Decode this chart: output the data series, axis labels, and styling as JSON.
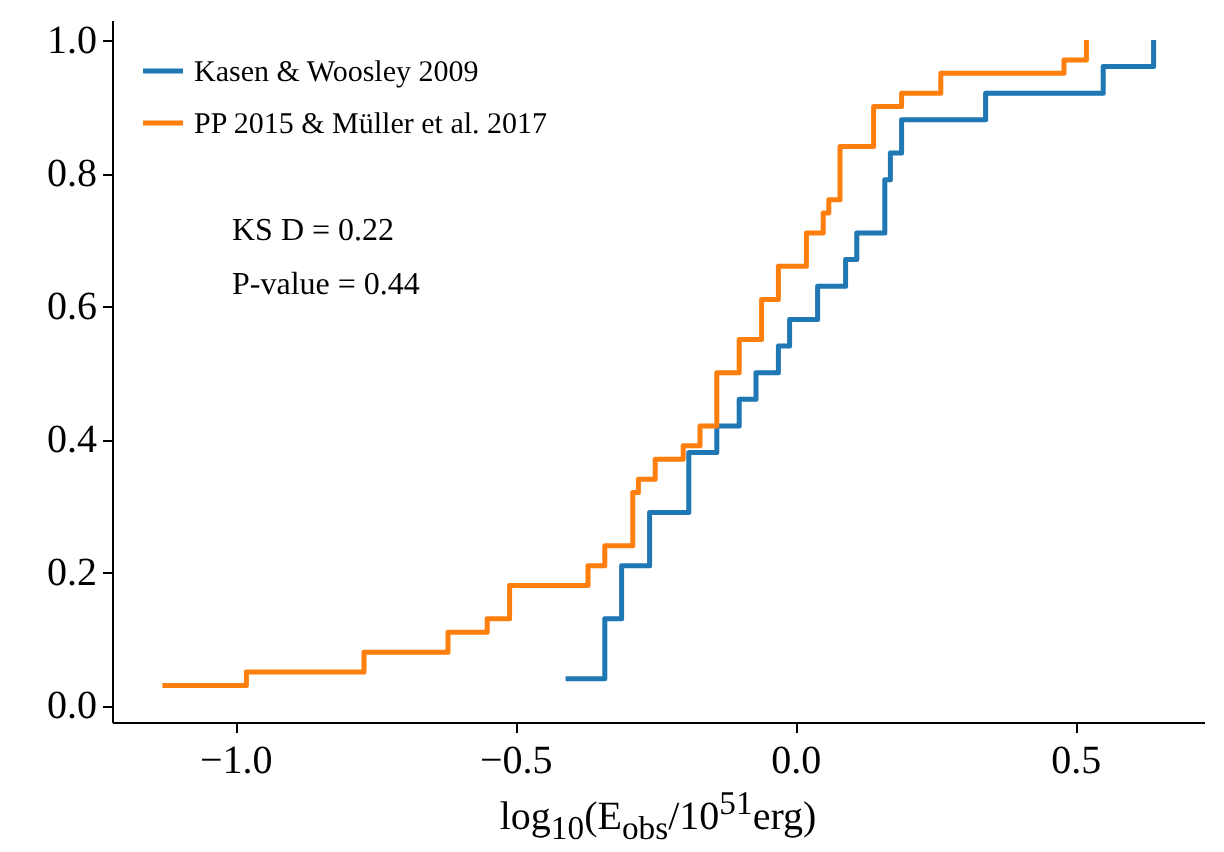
{
  "chart_data": {
    "type": "step",
    "xlabel": "log$_{10}$(E$_{obs}$/10$^{51}$erg)",
    "annotations": [
      "KS D = 0.22",
      "P-value = 0.44"
    ],
    "series": [
      {
        "name": "Kasen & Woosley 2009",
        "color": "#1f77b4",
        "x": [
          -0.41,
          -0.34,
          -0.31,
          -0.26,
          -0.19,
          -0.14,
          -0.1,
          -0.07,
          -0.03,
          -0.01,
          0.04,
          0.09,
          0.11,
          0.16,
          0.16,
          0.17,
          0.19,
          0.34,
          0.55,
          0.64
        ],
        "values": [
          0.04,
          0.13,
          0.21,
          0.29,
          0.38,
          0.42,
          0.46,
          0.5,
          0.54,
          0.58,
          0.63,
          0.67,
          0.71,
          0.75,
          0.79,
          0.83,
          0.88,
          0.92,
          0.96,
          1.0
        ]
      },
      {
        "name": "PP 2015 & Müller et al. 2017",
        "color": "#ff7f0e",
        "x": [
          -1.13,
          -0.98,
          -0.77,
          -0.62,
          -0.55,
          -0.51,
          -0.37,
          -0.34,
          -0.29,
          -0.28,
          -0.25,
          -0.2,
          -0.17,
          -0.14,
          -0.1,
          -0.06,
          -0.03,
          0.02,
          0.05,
          0.06,
          0.08,
          0.14,
          0.19,
          0.26,
          0.48,
          0.52
        ],
        "values": [
          0.03,
          0.05,
          0.08,
          0.11,
          0.13,
          0.18,
          0.21,
          0.24,
          0.32,
          0.34,
          0.37,
          0.39,
          0.42,
          0.5,
          0.55,
          0.61,
          0.66,
          0.71,
          0.74,
          0.76,
          0.84,
          0.9,
          0.92,
          0.95,
          0.97,
          1.0
        ]
      }
    ],
    "xlim": [
      -1.22,
      0.73
    ],
    "ylim": [
      -0.025,
      1.03
    ],
    "xticks": [
      {
        "value": -1,
        "label": "−1.0"
      },
      {
        "value": -0.5,
        "label": "−0.5"
      },
      {
        "value": 0,
        "label": "0.0"
      },
      {
        "value": 0.5,
        "label": "0.5"
      }
    ],
    "yticks": [
      {
        "value": 0,
        "label": "0.0"
      },
      {
        "value": 0.2,
        "label": "0.2"
      },
      {
        "value": 0.4,
        "label": "0.4"
      },
      {
        "value": 0.6,
        "label": "0.6"
      },
      {
        "value": 0.8,
        "label": "0.8"
      },
      {
        "value": 1,
        "label": "1.0"
      }
    ],
    "legend": "top left",
    "grid": false
  }
}
